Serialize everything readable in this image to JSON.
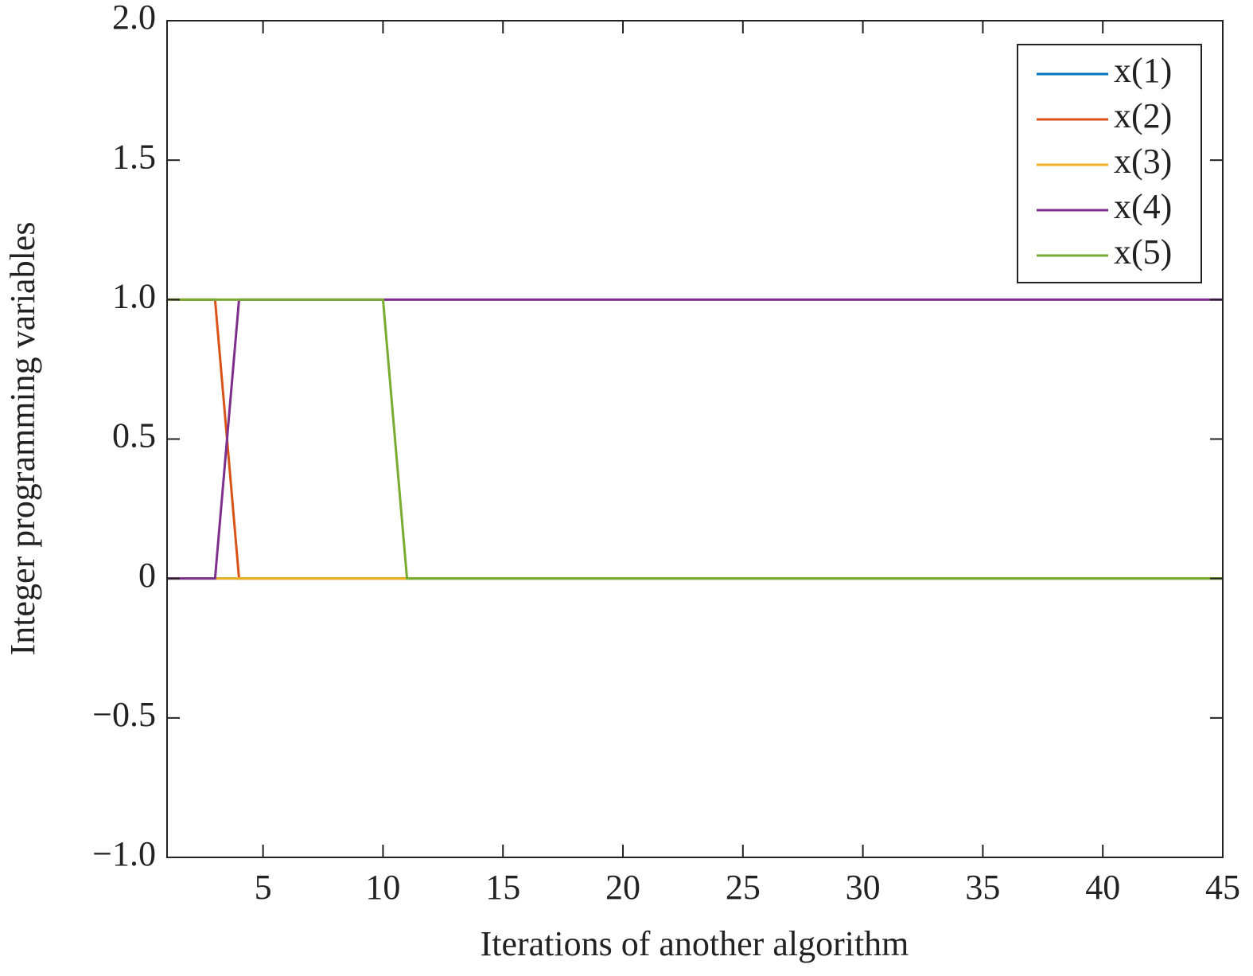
{
  "chart_data": {
    "type": "line",
    "xlabel": "Iterations of another algorithm",
    "ylabel": "Integer programming variables",
    "x": [
      1,
      2,
      3,
      4,
      5,
      6,
      7,
      8,
      9,
      10,
      11,
      12,
      13,
      14,
      15,
      16,
      17,
      18,
      19,
      20,
      21,
      22,
      23,
      24,
      25,
      26,
      27,
      28,
      29,
      30,
      31,
      32,
      33,
      34,
      35,
      36,
      37,
      38,
      39,
      40,
      41,
      42,
      43,
      44,
      45
    ],
    "series": [
      {
        "name": "x(1)",
        "color": "#0072BD",
        "values": [
          0,
          0,
          0,
          0,
          0,
          0,
          0,
          0,
          0,
          0,
          0,
          0,
          0,
          0,
          0,
          0,
          0,
          0,
          0,
          0,
          0,
          0,
          0,
          0,
          0,
          0,
          0,
          0,
          0,
          0,
          0,
          0,
          0,
          0,
          0,
          0,
          0,
          0,
          0,
          0,
          0,
          0,
          0,
          0,
          0
        ]
      },
      {
        "name": "x(2)",
        "color": "#D95319",
        "values": [
          1,
          1,
          1,
          0,
          0,
          0,
          0,
          0,
          0,
          0,
          0,
          0,
          0,
          0,
          0,
          0,
          0,
          0,
          0,
          0,
          0,
          0,
          0,
          0,
          0,
          0,
          0,
          0,
          0,
          0,
          0,
          0,
          0,
          0,
          0,
          0,
          0,
          0,
          0,
          0,
          0,
          0,
          0,
          0,
          0
        ]
      },
      {
        "name": "x(3)",
        "color": "#EDB120",
        "values": [
          0,
          0,
          0,
          0,
          0,
          0,
          0,
          0,
          0,
          0,
          0,
          0,
          0,
          0,
          0,
          0,
          0,
          0,
          0,
          0,
          0,
          0,
          0,
          0,
          0,
          0,
          0,
          0,
          0,
          0,
          0,
          0,
          0,
          0,
          0,
          0,
          0,
          0,
          0,
          0,
          0,
          0,
          0,
          0,
          0
        ]
      },
      {
        "name": "x(4)",
        "color": "#7E2F8E",
        "values": [
          0,
          0,
          0,
          1,
          1,
          1,
          1,
          1,
          1,
          1,
          1,
          1,
          1,
          1,
          1,
          1,
          1,
          1,
          1,
          1,
          1,
          1,
          1,
          1,
          1,
          1,
          1,
          1,
          1,
          1,
          1,
          1,
          1,
          1,
          1,
          1,
          1,
          1,
          1,
          1,
          1,
          1,
          1,
          1,
          1
        ]
      },
      {
        "name": "x(5)",
        "color": "#77AC30",
        "values": [
          1,
          1,
          1,
          1,
          1,
          1,
          1,
          1,
          1,
          1,
          0,
          0,
          0,
          0,
          0,
          0,
          0,
          0,
          0,
          0,
          0,
          0,
          0,
          0,
          0,
          0,
          0,
          0,
          0,
          0,
          0,
          0,
          0,
          0,
          0,
          0,
          0,
          0,
          0,
          0,
          0,
          0,
          0,
          0,
          0
        ]
      }
    ],
    "xlim": [
      1,
      45
    ],
    "xticks": [
      5,
      10,
      15,
      20,
      25,
      30,
      35,
      40,
      45
    ],
    "ylim": [
      -1,
      2
    ],
    "yticks": [
      {
        "value": -1,
        "label": "−1.0"
      },
      {
        "value": -0.5,
        "label": "−0.5"
      },
      0,
      0.5,
      {
        "value": 1,
        "label": "1.0"
      },
      1.5,
      {
        "value": 2,
        "label": "2.0"
      }
    ],
    "legend": "upper right"
  }
}
